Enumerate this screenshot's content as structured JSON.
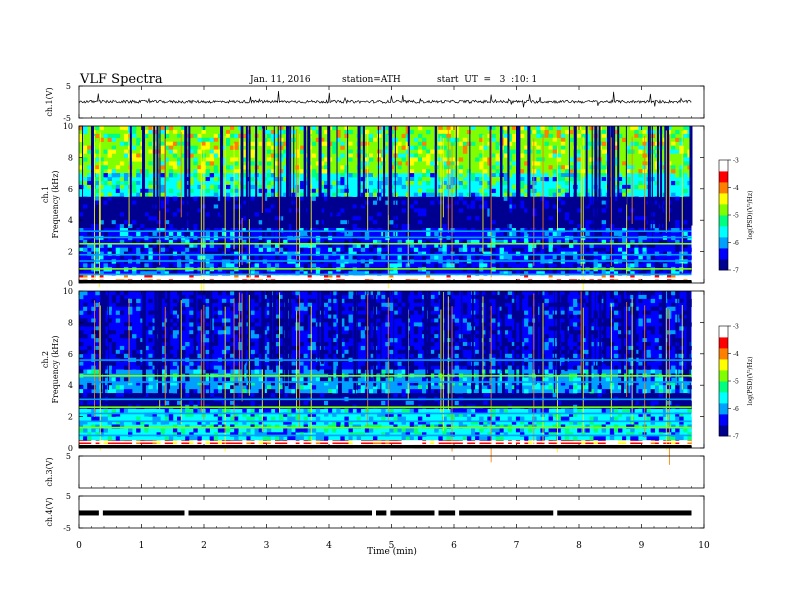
{
  "header": {
    "title": "VLF  Spectra",
    "date": "Jan. 11, 2016",
    "station": "station=ATH",
    "start": "start  UT  =   3  :10: 1"
  },
  "chart_data": {
    "type": "heatmap",
    "x_axis": {
      "label": "Time  (min)",
      "range": [
        0,
        10
      ],
      "ticks": [
        "0",
        "1",
        "2",
        "3",
        "4",
        "5",
        "6",
        "7",
        "8",
        "9",
        "10"
      ],
      "data_extent_min": 9.8
    },
    "panels": [
      {
        "name": "ch1-voltage",
        "type": "line",
        "ylabel": "ch.1(V)",
        "yrange": [
          -5,
          5
        ],
        "ticks": [
          "5",
          "-5"
        ],
        "baseline": 0.1
      },
      {
        "name": "ch1-spectrogram",
        "type": "heatmap",
        "channel_label": "ch.1",
        "ylabel": "Frequency  (kHz)",
        "yrange": [
          0,
          10
        ],
        "ticks": [
          "0",
          "2",
          "4",
          "6",
          "8",
          "10"
        ],
        "bands_khz": [
          {
            "from": 0.0,
            "to": 0.5,
            "level": -3.2,
            "note": "strong low-frequency lines"
          },
          {
            "from": 0.5,
            "to": 3.5,
            "level": -6.3
          },
          {
            "from": 3.5,
            "to": 5.5,
            "level": -6.9
          },
          {
            "from": 5.5,
            "to": 7.0,
            "level": -5.5
          },
          {
            "from": 7.0,
            "to": 10.0,
            "level": -4.8
          }
        ]
      },
      {
        "name": "ch2-spectrogram",
        "type": "heatmap",
        "channel_label": "ch.2",
        "ylabel": "Frequency  (kHz)",
        "yrange": [
          0,
          10
        ],
        "ticks": [
          "0",
          "2",
          "4",
          "6",
          "8",
          "10"
        ],
        "bands_khz": [
          {
            "from": 0.0,
            "to": 0.5,
            "level": -3.5
          },
          {
            "from": 0.5,
            "to": 2.5,
            "level": -5.8
          },
          {
            "from": 2.5,
            "to": 3.5,
            "level": -6.9
          },
          {
            "from": 3.5,
            "to": 5.0,
            "level": -6.0
          },
          {
            "from": 5.0,
            "to": 10.0,
            "level": -6.6
          }
        ]
      },
      {
        "name": "ch3-voltage",
        "type": "line",
        "ylabel": "ch.3(V)",
        "yrange": [
          -5,
          5
        ],
        "ticks": [
          "5"
        ],
        "baseline": null
      },
      {
        "name": "ch4-voltage",
        "type": "line",
        "ylabel": "ch.4(V)",
        "yrange": [
          -5,
          5
        ],
        "ticks": [
          "5",
          "-5"
        ],
        "baseline": -0.3,
        "gaps_min": [
          0.35,
          1.72,
          4.72,
          4.95,
          5.72,
          6.05,
          7.62
        ]
      }
    ],
    "colorbar": {
      "label": "log(PSD)(V²/Hz)",
      "range": [
        -7,
        -3
      ],
      "ticks": [
        "-3",
        "-4",
        "-5",
        "-6",
        "-7"
      ],
      "colors": [
        "#000090",
        "#0000ff",
        "#00a0ff",
        "#00ffff",
        "#00ff80",
        "#80ff00",
        "#ffff00",
        "#ff8000",
        "#ff0000",
        "#ffffff"
      ]
    }
  }
}
